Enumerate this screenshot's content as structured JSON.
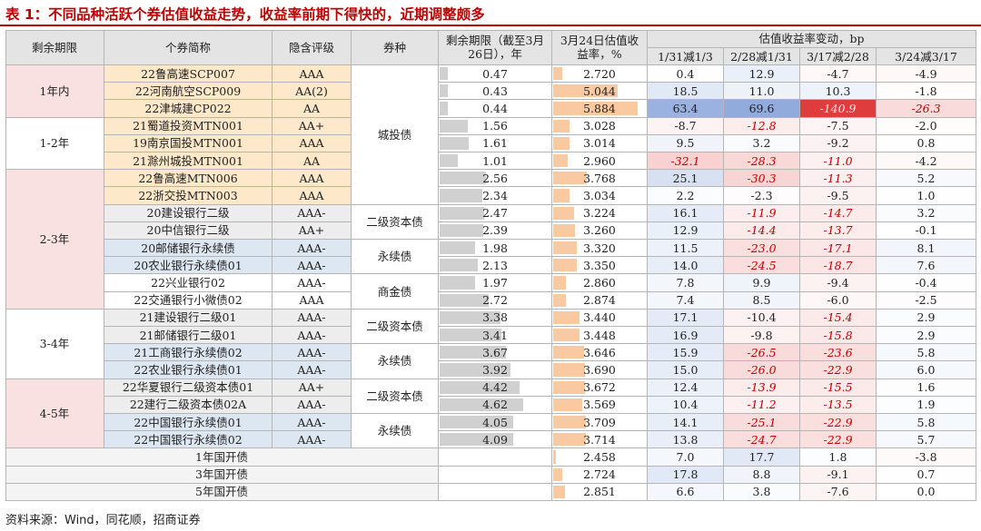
{
  "title": "表 1：不同品种活跃个券估值收益走势，收益率前期下得快的，近期调整颇多",
  "source": "资料来源：Wind，同花顺，招商证券",
  "table": {
    "headers": [
      "剩余期限",
      "个券简称",
      "隐含评级",
      "券种",
      "剩余期限（截至3月26日），年",
      "3月24日估值收益率，%"
    ],
    "change_header": "估值收益率变动，bp",
    "change_subheaders": [
      "1/31减1/3",
      "2/28减1/31",
      "3/17减2/28",
      "3/24减3/17"
    ],
    "term_groups": [
      {
        "label": "1年内",
        "color": "#f9e1e1",
        "rows": [
          {
            "name": "22鲁高速SCP007",
            "rating": "AAA",
            "type": "城投债",
            "color": "#fde9c9",
            "term": "0.47",
            "yield": "2.720",
            "changes": [
              "0.4",
              "12.9",
              "-4.7",
              "-4.9"
            ]
          },
          {
            "name": "22河南航空SCP009",
            "rating": "AA(2)",
            "type": "城投债",
            "color": "#fde9c9",
            "term": "0.43",
            "yield": "5.044",
            "changes": [
              "18.5",
              "11.0",
              "10.3",
              "-1.8"
            ]
          },
          {
            "name": "22津城建CP022",
            "rating": "AA",
            "type": "城投债",
            "color": "#fde9c9",
            "term": "0.44",
            "yield": "5.884",
            "changes": [
              "63.4",
              "69.6",
              "-140.9",
              "-26.3"
            ]
          }
        ]
      },
      {
        "label": "1-2年",
        "color": "#ffffff",
        "rows": [
          {
            "name": "21蜀道投资MTN001",
            "rating": "AA+",
            "type": "城投债",
            "color": "#fde9c9",
            "term": "1.56",
            "yield": "3.028",
            "changes": [
              "-8.7",
              "-12.8",
              "-7.5",
              "-2.0"
            ]
          },
          {
            "name": "19南京国投MTN001",
            "rating": "AAA",
            "type": "城投债",
            "color": "#fde9c9",
            "term": "1.61",
            "yield": "3.014",
            "changes": [
              "9.5",
              "3.2",
              "-9.2",
              "0.8"
            ]
          },
          {
            "name": "21滁州城投MTN001",
            "rating": "AA",
            "type": "城投债",
            "color": "#fde9c9",
            "term": "1.01",
            "yield": "2.960",
            "changes": [
              "-32.1",
              "-28.3",
              "-11.0",
              "-4.2"
            ]
          }
        ]
      },
      {
        "label": "2-3年",
        "color": "#f9e1e1",
        "rows": [
          {
            "name": "22鲁高速MTN006",
            "rating": "AAA",
            "type": "城投债",
            "color": "#fde9c9",
            "term": "2.56",
            "yield": "3.768",
            "changes": [
              "25.1",
              "-30.3",
              "-11.3",
              "5.2"
            ]
          },
          {
            "name": "22浙交投MTN003",
            "rating": "AAA",
            "type": "城投债",
            "color": "#fde9c9",
            "term": "2.34",
            "yield": "3.034",
            "changes": [
              "2.2",
              "-2.3",
              "-9.5",
              "1.0"
            ]
          },
          {
            "name": "20建设银行二级",
            "rating": "AAA-",
            "type": "二级资本债",
            "color": "#ededed",
            "term": "2.47",
            "yield": "3.224",
            "changes": [
              "16.1",
              "-11.9",
              "-14.7",
              "3.2"
            ]
          },
          {
            "name": "20中信银行二级",
            "rating": "AA+",
            "type": "二级资本债",
            "color": "#ededed",
            "term": "2.39",
            "yield": "3.260",
            "changes": [
              "12.9",
              "-14.4",
              "-13.7",
              "-0.1"
            ]
          },
          {
            "name": "20邮储银行永续债",
            "rating": "AAA-",
            "type": "永续债",
            "color": "#dde7f2",
            "term": "1.98",
            "yield": "3.320",
            "changes": [
              "11.5",
              "-23.0",
              "-17.1",
              "8.1"
            ]
          },
          {
            "name": "20农业银行永续债01",
            "rating": "AAA-",
            "type": "永续债",
            "color": "#dde7f2",
            "term": "2.13",
            "yield": "3.350",
            "changes": [
              "14.0",
              "-24.5",
              "-18.7",
              "7.6"
            ]
          },
          {
            "name": "22兴业银行02",
            "rating": "AAA-",
            "type": "商金债",
            "color": "#ffffff",
            "term": "1.97",
            "yield": "2.860",
            "changes": [
              "7.8",
              "9.9",
              "-9.4",
              "-0.4"
            ]
          },
          {
            "name": "22交通银行小微债02",
            "rating": "AAA",
            "type": "商金债",
            "color": "#ffffff",
            "term": "2.72",
            "yield": "2.874",
            "changes": [
              "7.4",
              "8.5",
              "-6.0",
              "-2.5"
            ]
          }
        ]
      },
      {
        "label": "3-4年",
        "color": "#ffffff",
        "rows": [
          {
            "name": "21建设银行二级01",
            "rating": "AAA-",
            "type": "二级资本债",
            "color": "#ededed",
            "term": "3.38",
            "yield": "3.440",
            "changes": [
              "17.1",
              "-10.4",
              "-15.4",
              "2.9"
            ]
          },
          {
            "name": "21邮储银行二级01",
            "rating": "AAA-",
            "type": "二级资本债",
            "color": "#ededed",
            "term": "3.41",
            "yield": "3.448",
            "changes": [
              "16.9",
              "-9.8",
              "-15.8",
              "2.9"
            ]
          },
          {
            "name": "21工商银行永续债02",
            "rating": "AAA-",
            "type": "永续债",
            "color": "#dde7f2",
            "term": "3.67",
            "yield": "3.646",
            "changes": [
              "15.9",
              "-26.5",
              "-23.6",
              "5.8"
            ]
          },
          {
            "name": "22农业银行永续债01",
            "rating": "AAA-",
            "type": "永续债",
            "color": "#dde7f2",
            "term": "3.92",
            "yield": "3.690",
            "changes": [
              "15.0",
              "-26.0",
              "-22.9",
              "6.0"
            ]
          }
        ]
      },
      {
        "label": "4-5年",
        "color": "#f9e1e1",
        "rows": [
          {
            "name": "22华夏银行二级资本债01",
            "rating": "AA+",
            "type": "二级资本债",
            "color": "#ededed",
            "term": "4.42",
            "yield": "3.672",
            "changes": [
              "12.4",
              "-13.9",
              "-15.5",
              "1.6"
            ]
          },
          {
            "name": "22建行二级资本债02A",
            "rating": "AAA-",
            "type": "二级资本债",
            "color": "#ededed",
            "term": "4.62",
            "yield": "3.569",
            "changes": [
              "10.4",
              "-11.2",
              "-13.5",
              "1.9"
            ]
          },
          {
            "name": "22中国银行永续债01",
            "rating": "AAA-",
            "type": "永续债",
            "color": "#dde7f2",
            "term": "4.05",
            "yield": "3.709",
            "changes": [
              "14.1",
              "-25.1",
              "-22.9",
              "5.8"
            ]
          },
          {
            "name": "22中国银行永续债02",
            "rating": "AAA-",
            "type": "永续债",
            "color": "#dde7f2",
            "term": "4.09",
            "yield": "3.714",
            "changes": [
              "13.8",
              "-24.7",
              "-22.9",
              "5.7"
            ]
          }
        ]
      }
    ],
    "benchmarks": [
      {
        "name": "1年国开债",
        "yield": "2.458",
        "changes": [
          "7.0",
          "17.7",
          "1.8",
          "-3.8"
        ]
      },
      {
        "name": "3年国开债",
        "yield": "2.724",
        "changes": [
          "17.8",
          "8.8",
          "-9.1",
          "0.7"
        ]
      },
      {
        "name": "5年国开债",
        "yield": "2.851",
        "changes": [
          "6.6",
          "3.8",
          "-7.6",
          "0.0"
        ]
      }
    ]
  }
}
